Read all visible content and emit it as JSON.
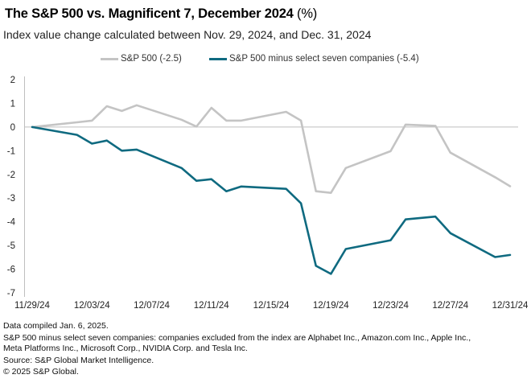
{
  "title": "The S&P 500 vs. Magnificent 7, December 2024",
  "title_unit": " (%)",
  "subtitle": "Index value change calculated between Nov. 29, 2024, and Dec. 31, 2024",
  "footer": {
    "line1": "Data compiled Jan. 6, 2025.",
    "line2": "S&P 500 minus select seven companies: companies excluded from the index are Alphabet Inc., Amazon.com Inc., Apple Inc.,",
    "line3": "Meta Platforms Inc., Microsoft Corp., NVIDIA Corp. and Tesla Inc.",
    "line4": "Source: S&P Global Market Intelligence.",
    "line5": "© 2025 S&P Global."
  },
  "chart_data": {
    "type": "line",
    "title": "The S&P 500 vs. Magnificent 7, December 2024 (%)",
    "subtitle": "Index value change calculated between Nov. 29, 2024, and Dec. 31, 2024",
    "xlabel": "",
    "ylabel": "",
    "ylim": [
      -7,
      2
    ],
    "yticks": [
      2,
      1,
      0,
      -1,
      -2,
      -3,
      -4,
      -5,
      -6,
      -7
    ],
    "xlim_days": [
      0,
      32
    ],
    "xtick_labels": [
      "11/29/24",
      "12/03/24",
      "12/07/24",
      "12/11/24",
      "12/15/24",
      "12/19/24",
      "12/23/24",
      "12/27/24",
      "12/31/24"
    ],
    "xtick_days": [
      0,
      4,
      8,
      12,
      16,
      20,
      24,
      28,
      32
    ],
    "grid": false,
    "zero_line": true,
    "legend_position": "top-center",
    "x": [
      "11/29/24",
      "12/02/24",
      "12/03/24",
      "12/04/24",
      "12/05/24",
      "12/06/24",
      "12/09/24",
      "12/10/24",
      "12/11/24",
      "12/12/24",
      "12/13/24",
      "12/16/24",
      "12/17/24",
      "12/18/24",
      "12/19/24",
      "12/20/24",
      "12/23/24",
      "12/24/24",
      "12/26/24",
      "12/27/24",
      "12/30/24",
      "12/31/24"
    ],
    "x_days": [
      0,
      3,
      4,
      5,
      6,
      7,
      10,
      11,
      12,
      13,
      14,
      17,
      18,
      19,
      20,
      21,
      24,
      25,
      27,
      28,
      31,
      32
    ],
    "series": [
      {
        "name": "S&P 500 (-2.5)",
        "color": "#C4C4C4",
        "values": [
          0,
          0.2,
          0.27,
          0.88,
          0.68,
          0.92,
          0.31,
          0.02,
          0.81,
          0.27,
          0.27,
          0.64,
          0.27,
          -2.71,
          -2.78,
          -1.73,
          -1.02,
          0.1,
          0.05,
          -1.08,
          -2.12,
          -2.5
        ]
      },
      {
        "name": "S&P 500 minus select seven companies (-5.4)",
        "color": "#0F6A80",
        "values": [
          0,
          -0.33,
          -0.7,
          -0.57,
          -1.0,
          -0.95,
          -1.73,
          -2.27,
          -2.2,
          -2.71,
          -2.51,
          -2.61,
          -3.22,
          -5.86,
          -6.2,
          -5.15,
          -4.78,
          -3.9,
          -3.78,
          -4.48,
          -5.49,
          -5.4
        ]
      }
    ]
  }
}
